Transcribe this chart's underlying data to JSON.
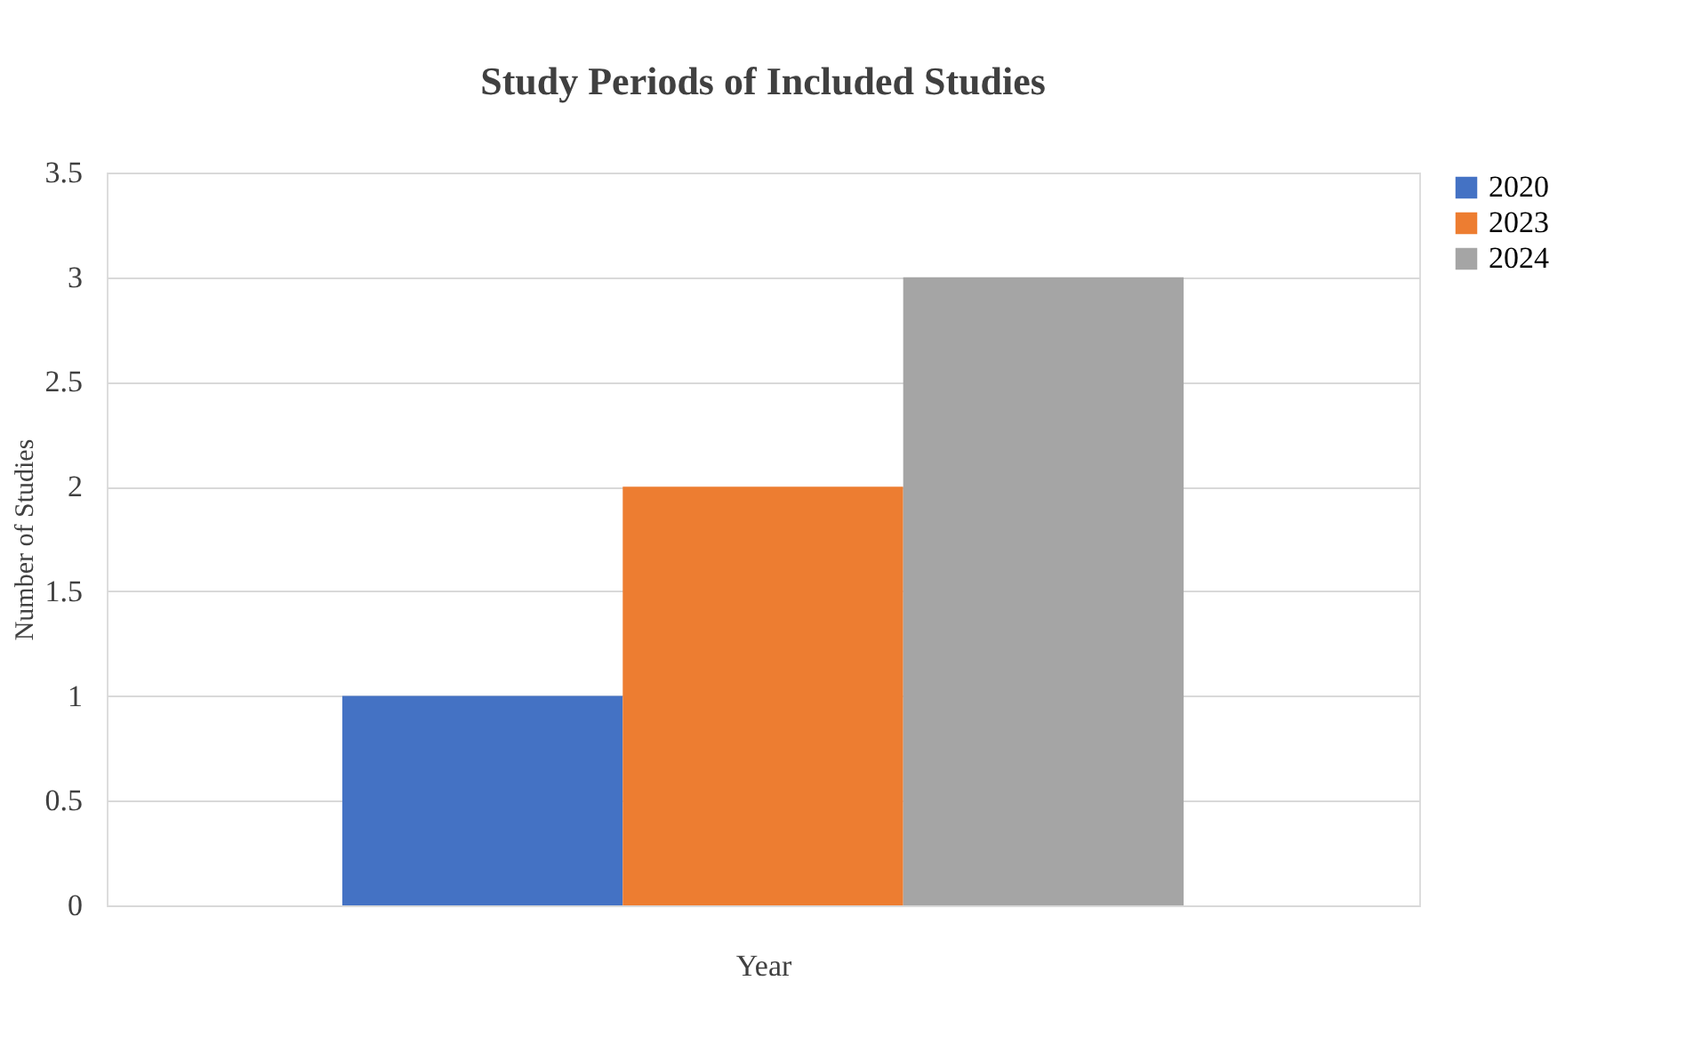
{
  "chart_data": {
    "type": "bar",
    "title": "Study Periods of Included Studies",
    "xlabel": "Year",
    "ylabel": "Number of Studies",
    "categories": [
      null
    ],
    "series": [
      {
        "name": "2020",
        "color": "#4472c4",
        "values": [
          1
        ]
      },
      {
        "name": "2023",
        "color": "#ed7d31",
        "values": [
          2
        ]
      },
      {
        "name": "2024",
        "color": "#a5a5a5",
        "values": [
          3
        ]
      }
    ],
    "ylim": [
      0,
      3.5
    ],
    "yticks": [
      0,
      0.5,
      1,
      1.5,
      2,
      2.5,
      3,
      3.5
    ],
    "grid": "y",
    "legend": "right"
  }
}
